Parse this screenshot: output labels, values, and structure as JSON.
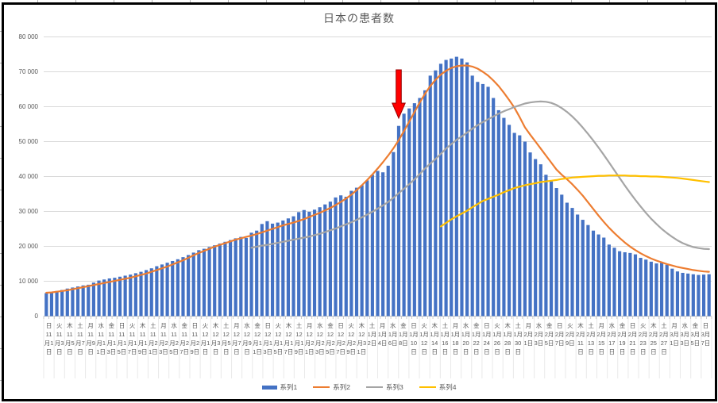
{
  "title": "日本の患者数",
  "legend": {
    "items": [
      {
        "label": "系列1",
        "color": "#4472C4",
        "marker": "bar"
      },
      {
        "label": "系列2",
        "color": "#ED7D31",
        "marker": "line"
      },
      {
        "label": "系列3",
        "color": "#A5A5A5",
        "marker": "line"
      },
      {
        "label": "系列4",
        "color": "#FFC000",
        "marker": "line"
      }
    ]
  },
  "colors": {
    "bar_blue": "#4472C4",
    "line_orange": "#ED7D31",
    "line_gray": "#A5A5A5",
    "line_yellow": "#FFC000",
    "arrow_red": "#FF0000",
    "arrow_outline": "#990000",
    "axis_text": "#595959",
    "gridline": "#D9D9D9"
  },
  "chart_data": {
    "type": "bar",
    "subtype": "combo bar+line, daily data 11月1日〜3月7日 (127 days), x tick labels every 2 days",
    "title": "日本の患者数",
    "xlabel": "",
    "ylabel": "",
    "ylim": [
      0,
      80000
    ],
    "y_tick_step": 10000,
    "grid": true,
    "legend_position": "bottom",
    "y_tick_labels": [
      "0",
      "10 000",
      "20 000",
      "30 000",
      "40 000",
      "50 000",
      "60 000",
      "70 000",
      "80 000"
    ],
    "x_tick_labels": [
      "日\n11月1日",
      "火\n11月3日",
      "木\n11月5日",
      "土\n11月7日",
      "月\n11月9日",
      "水\n11月11日",
      "金\n11月13日",
      "日\n11月15日",
      "火\n11月17日",
      "木\n11月19日",
      "土\n11月21日",
      "月\n11月23日",
      "水\n11月25日",
      "金\n11月27日",
      "日\n11月29日",
      "火\n12月1日",
      "木\n12月3日",
      "土\n12月5日",
      "月\n12月7日",
      "水\n12月9日",
      "金\n12月11日",
      "日\n12月13日",
      "火\n12月15日",
      "木\n12月17日",
      "土\n12月19日",
      "月\n12月21日",
      "水\n12月23日",
      "金\n12月25日",
      "日\n12月27日",
      "火\n12月29日",
      "木\n12月31日",
      "土\n1月2日",
      "月\n1月4日",
      "水\n1月6日",
      "金\n1月8日",
      "日\n1月10日",
      "火\n1月12日",
      "木\n1月14日",
      "土\n1月16日",
      "月\n1月18日",
      "水\n1月20日",
      "金\n1月22日",
      "日\n1月24日",
      "火\n1月26日",
      "木\n1月28日",
      "土\n1月30日",
      "月\n2月1日",
      "水\n2月3日",
      "金\n2月5日",
      "日\n2月7日",
      "火\n2月9日",
      "木\n2月11日",
      "土\n2月13日",
      "月\n2月15日",
      "水\n2月17日",
      "金\n2月19日",
      "日\n2月21日",
      "火\n2月23日",
      "木\n2月25日",
      "土\n2月27日",
      "月\n3月1日",
      "水\n3月3日",
      "金\n3月5日",
      "日\n3月7日"
    ],
    "annotation": {
      "shape": "down-arrow",
      "color": "#FF0000",
      "outline": "#990000",
      "day_index": 67,
      "points_at": "1月7日"
    },
    "series": [
      {
        "name": "系列1",
        "type": "bar",
        "color": "#4472C4",
        "start_index": 0,
        "values": [
          6600,
          6900,
          7200,
          7500,
          7900,
          8200,
          8500,
          8800,
          9000,
          9600,
          10200,
          10500,
          10800,
          11000,
          11300,
          11600,
          11900,
          12300,
          12700,
          13200,
          13700,
          14300,
          14800,
          15300,
          15800,
          16300,
          16900,
          17500,
          18200,
          18900,
          19300,
          19800,
          20300,
          20800,
          21300,
          21800,
          22300,
          22700,
          22400,
          23900,
          24500,
          26400,
          27200,
          26500,
          26800,
          27400,
          28000,
          28600,
          29800,
          30400,
          29900,
          30500,
          31200,
          32000,
          32800,
          34000,
          34600,
          34200,
          35900,
          36800,
          37500,
          38900,
          40500,
          41600,
          41200,
          43100,
          47000,
          54500,
          58000,
          59500,
          61000,
          62500,
          64700,
          68900,
          70400,
          72300,
          73400,
          73800,
          74300,
          73800,
          72700,
          68900,
          67100,
          66500,
          65700,
          62500,
          59000,
          56800,
          54800,
          52500,
          51800,
          50000,
          46900,
          45000,
          43500,
          40500,
          38600,
          36700,
          34800,
          32500,
          31000,
          29100,
          27600,
          26100,
          24500,
          23400,
          22500,
          20500,
          19600,
          18600,
          18300,
          18100,
          17700,
          16700,
          16200,
          15600,
          15100,
          15300,
          14700,
          13600,
          12800,
          12400,
          12200,
          12000,
          11800,
          11900,
          12000
        ]
      },
      {
        "name": "系列2",
        "type": "line",
        "color": "#ED7D31",
        "start_index": 0,
        "values": [
          6700,
          6800,
          7000,
          7200,
          7400,
          7700,
          8000,
          8300,
          8600,
          8900,
          9200,
          9500,
          9800,
          10100,
          10400,
          10700,
          11000,
          11400,
          11800,
          12200,
          12700,
          13200,
          13700,
          14200,
          14800,
          15400,
          16000,
          16700,
          17400,
          18100,
          18700,
          19300,
          19900,
          20400,
          20900,
          21400,
          21900,
          22300,
          22700,
          23100,
          23500,
          24000,
          24500,
          25000,
          25500,
          26000,
          26400,
          26800,
          27300,
          27800,
          28400,
          29000,
          29600,
          30300,
          31000,
          31800,
          32700,
          33700,
          34800,
          36100,
          37500,
          39000,
          40600,
          42300,
          44100,
          46000,
          48100,
          50400,
          53000,
          55700,
          58500,
          61200,
          63700,
          65900,
          67700,
          69200,
          70300,
          71100,
          71600,
          71800,
          71800,
          71500,
          70900,
          70000,
          68900,
          67500,
          65900,
          64000,
          61900,
          59700,
          57000,
          54100,
          52000,
          50000,
          48000,
          46000,
          44000,
          42000,
          40500,
          39200,
          37800,
          36200,
          34500,
          32600,
          30700,
          28800,
          27000,
          25300,
          23800,
          22400,
          21100,
          19900,
          18900,
          18000,
          17200,
          16500,
          15900,
          15400,
          14900,
          14500,
          14100,
          13800,
          13500,
          13200,
          13000,
          12800,
          12700
        ]
      },
      {
        "name": "系列3",
        "type": "line",
        "color": "#A5A5A5",
        "start_index": 39,
        "values": [
          19600,
          19900,
          20200,
          20400,
          20700,
          21000,
          21300,
          21600,
          21900,
          22200,
          22500,
          22800,
          23200,
          23600,
          24100,
          24600,
          25100,
          25700,
          26300,
          26900,
          27600,
          28300,
          29100,
          29900,
          30800,
          31700,
          32700,
          33900,
          35200,
          36500,
          37800,
          39200,
          40700,
          42300,
          43700,
          45000,
          46500,
          48000,
          49300,
          50500,
          51500,
          52600,
          53700,
          54700,
          55600,
          56400,
          57200,
          58000,
          58700,
          59300,
          59900,
          60400,
          60900,
          61200,
          61400,
          61500,
          61400,
          61100,
          60500,
          59600,
          58500,
          57200,
          55700,
          54000,
          52200,
          50300,
          48300,
          46200,
          44000,
          41800,
          39600,
          37400,
          35300,
          33300,
          31400,
          29600,
          27900,
          26400,
          25000,
          23800,
          22700,
          21700,
          20900,
          20300,
          19800,
          19500,
          19300,
          19200
        ]
      },
      {
        "name": "系列4",
        "type": "line",
        "color": "#FFC000",
        "start_index": 75,
        "values": [
          25700,
          26700,
          27700,
          28600,
          29400,
          30200,
          31200,
          32100,
          33000,
          33600,
          34200,
          34800,
          35500,
          36100,
          36700,
          37100,
          37500,
          37800,
          38100,
          38400,
          38600,
          38800,
          39000,
          39300,
          39500,
          39700,
          39800,
          39900,
          40000,
          40100,
          40200,
          40200,
          40300,
          40300,
          40300,
          40300,
          40200,
          40200,
          40100,
          40100,
          40000,
          40000,
          39900,
          39800,
          39700,
          39600,
          39400,
          39200,
          39000,
          38800,
          38600,
          38400
        ]
      }
    ]
  }
}
